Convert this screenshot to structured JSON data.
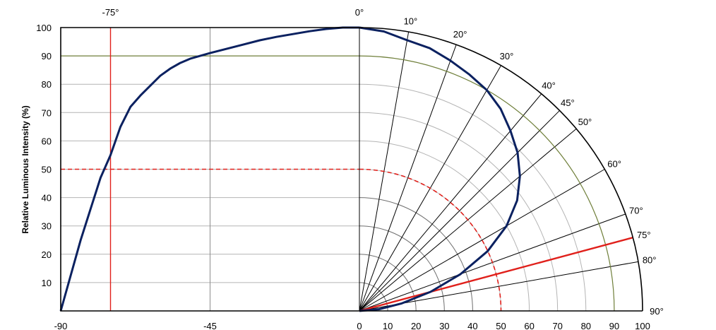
{
  "chart_data": {
    "type": "line",
    "title": "",
    "ylabel": "Relative Luminous Intensity (%)",
    "xlim": [
      -90,
      0
    ],
    "ylim": [
      0,
      100
    ],
    "x_ticks": [
      -90,
      -45
    ],
    "y_ticks": [
      10,
      20,
      30,
      40,
      50,
      60,
      70,
      80,
      90,
      100
    ],
    "top_angle_labels": [
      "-75°",
      "0°"
    ],
    "polar": {
      "radial_ticks": [
        0,
        10,
        20,
        30,
        40,
        50,
        60,
        70,
        80,
        90,
        100
      ],
      "angle_labels": [
        "10°",
        "20°",
        "30°",
        "40°",
        "45°",
        "50°",
        "60°",
        "70°",
        "75°",
        "80°",
        "90°"
      ],
      "spokes": [
        10,
        20,
        30,
        40,
        45,
        50,
        60,
        70,
        80
      ]
    },
    "grid": true,
    "reference_lines": {
      "level_90": 90,
      "half_intensity_level": 50,
      "half_intensity_angle": -75,
      "half_angle_polar": 75,
      "vertical_line_at": -45
    },
    "colors": {
      "curve": "#0b2160",
      "reference": "#e0201b",
      "level_90": "#6f7f3a",
      "grid_light": "#b4b4b4",
      "grid_dark": "#7d7d7d",
      "spoke": "#000000"
    },
    "series": [
      {
        "values_x": [
          -90,
          -87,
          -84,
          -81,
          -78,
          -75,
          -72,
          -69,
          -66,
          -63,
          -60,
          -57,
          -54,
          -51,
          -48,
          -45,
          -40,
          -35,
          -30,
          -25,
          -20,
          -15,
          -10,
          -5,
          0
        ],
        "values_y": [
          0,
          12.5,
          25,
          36,
          47,
          55,
          65,
          72,
          76,
          79.5,
          83,
          85.5,
          87.5,
          89,
          90,
          91,
          92.5,
          94,
          95.5,
          96.7,
          97.7,
          98.7,
          99.5,
          100,
          100
        ]
      },
      {
        "angles": [
          0,
          5,
          10,
          15,
          20,
          25,
          30,
          35,
          40,
          45,
          50,
          55,
          60,
          65,
          70,
          75,
          80,
          85,
          90
        ],
        "values": [
          100,
          99,
          97,
          96,
          94,
          92,
          90,
          87,
          83,
          79,
          74,
          68,
          60,
          50,
          38,
          26,
          15,
          7,
          0
        ]
      }
    ]
  }
}
